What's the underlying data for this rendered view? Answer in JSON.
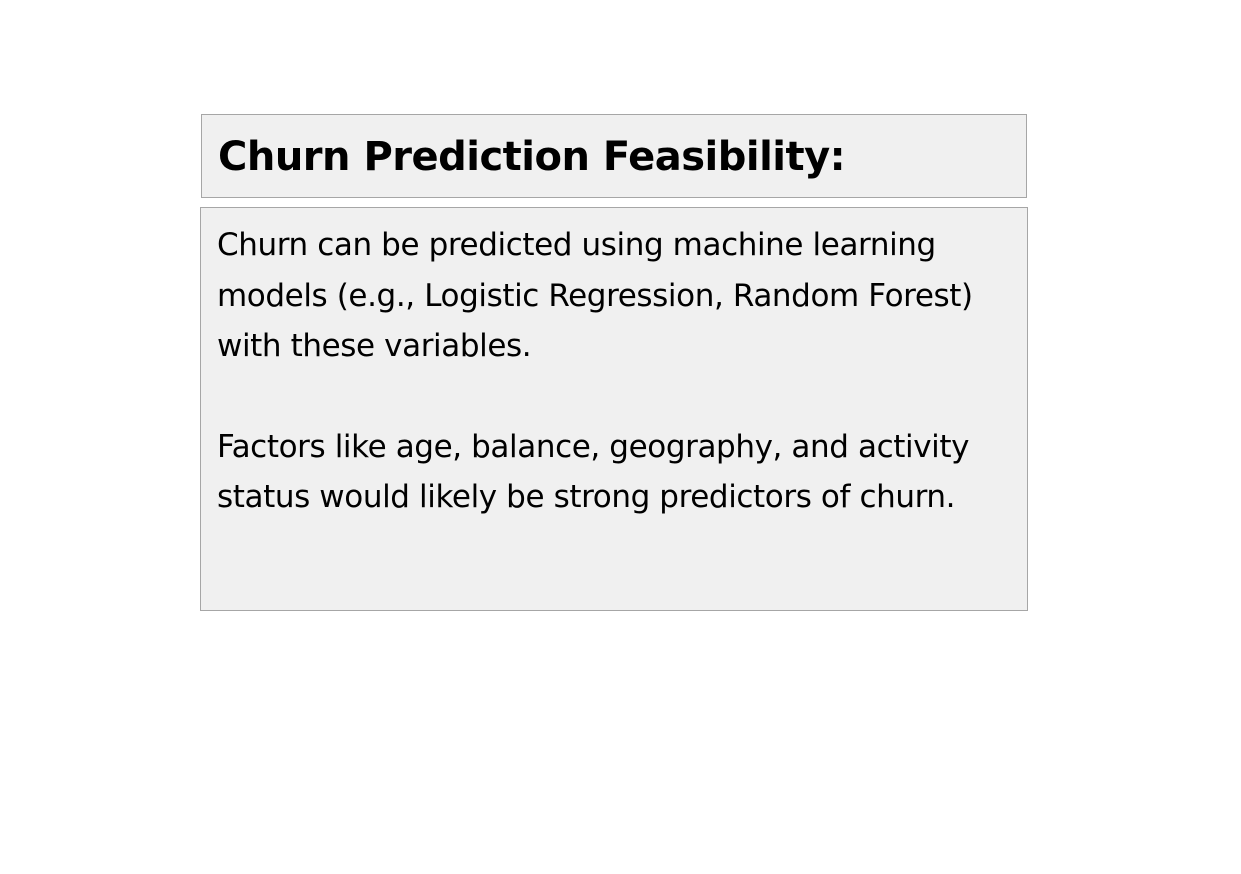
{
  "header": {
    "title": "Churn Prediction Feasibility:"
  },
  "content": {
    "paragraphs": [
      "Churn can be predicted using machine learning models (e.g., Logistic Regression, Random Forest) with these variables.",
      "Factors like age, balance, geography, and activity status would likely be strong predictors of churn."
    ]
  },
  "colors": {
    "box_background": "#f0f0f0",
    "box_border": "#a6a6a6",
    "text": "#000000",
    "page_background": "#ffffff"
  }
}
